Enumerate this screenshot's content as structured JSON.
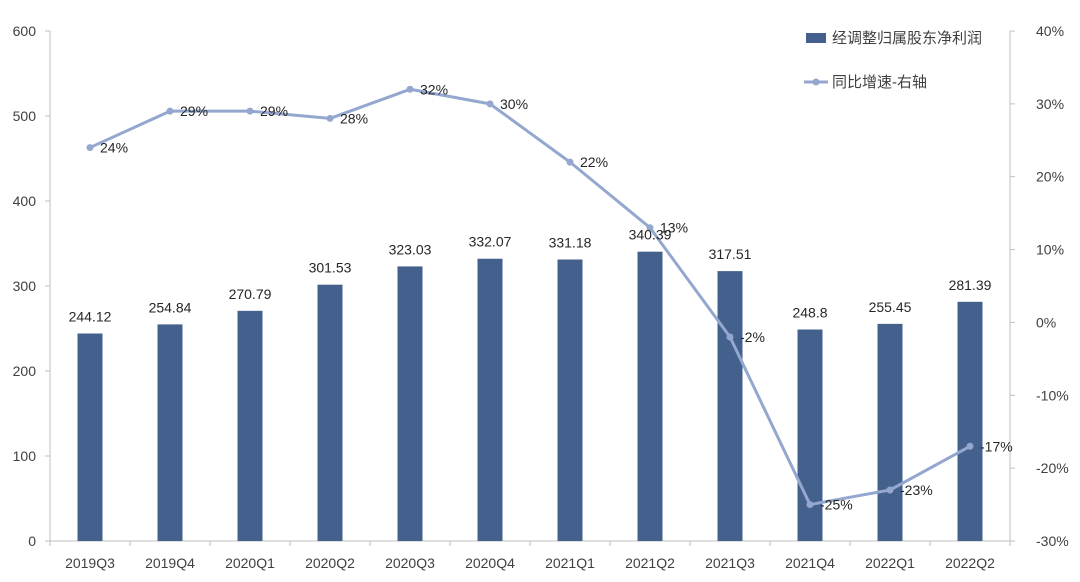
{
  "chart_data": {
    "type": "bar",
    "categories": [
      "2019Q3",
      "2019Q4",
      "2020Q1",
      "2020Q2",
      "2020Q3",
      "2020Q4",
      "2021Q1",
      "2021Q2",
      "2021Q3",
      "2021Q4",
      "2022Q1",
      "2022Q2"
    ],
    "series": [
      {
        "name": "经调整归属股东净利润",
        "type": "bar",
        "axis": "left",
        "values": [
          244.12,
          254.84,
          270.79,
          301.53,
          323.03,
          332.07,
          331.18,
          340.39,
          317.51,
          248.8,
          255.45,
          281.39
        ],
        "labels": [
          "244.12",
          "254.84",
          "270.79",
          "301.53",
          "323.03",
          "332.07",
          "331.18",
          "340.39",
          "317.51",
          "248.8",
          "255.45",
          "281.39"
        ]
      },
      {
        "name": "同比增速-右轴",
        "type": "line",
        "axis": "right",
        "values": [
          24,
          29,
          29,
          28,
          32,
          30,
          22,
          13,
          -2,
          -25,
          -23,
          -17
        ],
        "labels": [
          "24%",
          "29%",
          "29%",
          "28%",
          "32%",
          "30%",
          "22%",
          "13%",
          "-2%",
          "-25%",
          "-23%",
          "-17%"
        ]
      }
    ],
    "y_left": {
      "ylim": [
        0,
        600
      ],
      "ticks": [
        "0",
        "100",
        "200",
        "300",
        "400",
        "500",
        "600"
      ]
    },
    "y_right": {
      "ylim": [
        -30,
        40
      ],
      "ticks": [
        "-30%",
        "-20%",
        "-10%",
        "0%",
        "10%",
        "20%",
        "30%",
        "40%"
      ]
    },
    "legend": {
      "position": "top-right"
    },
    "grid": false,
    "colors": {
      "bar": "#44618E",
      "line": "#94A7CE",
      "axis": "#BFBFBF"
    }
  }
}
